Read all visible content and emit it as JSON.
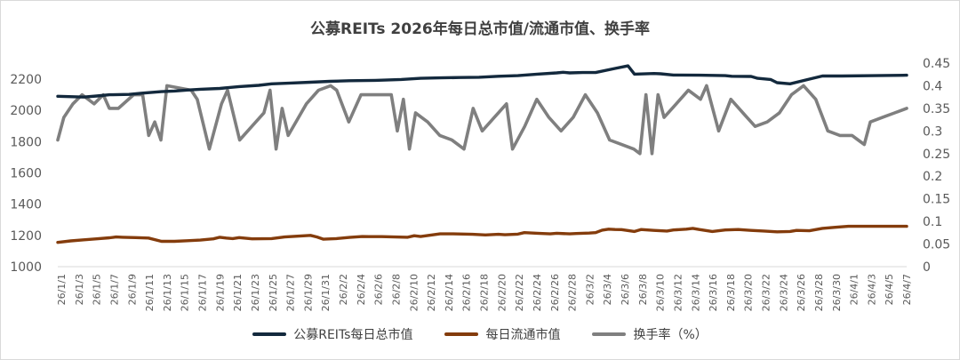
{
  "chart_data": {
    "type": "line",
    "title": "公募REITs 2026年每日总市值/流通市值、换手率",
    "left_axis": {
      "ylim": [
        1000,
        2200
      ],
      "ticks": [
        1000,
        1200,
        1400,
        1600,
        1800,
        2000,
        2200
      ]
    },
    "right_axis": {
      "ylim": [
        0,
        0.45
      ],
      "ticks": [
        "0",
        "0.05",
        "0.1",
        "0.15",
        "0.2",
        "0.25",
        "0.3",
        "0.35",
        "0.4",
        "0.45"
      ]
    },
    "x_tick_labels": [
      "26/1/1",
      "26/1/3",
      "26/1/5",
      "26/1/7",
      "26/1/9",
      "26/1/11",
      "26/1/13",
      "26/1/15",
      "26/1/17",
      "26/1/19",
      "26/1/21",
      "26/1/23",
      "26/1/25",
      "26/1/27",
      "26/1/29",
      "26/1/31",
      "26/2/2",
      "26/2/4",
      "26/2/6",
      "26/2/8",
      "26/2/10",
      "26/2/12",
      "26/2/14",
      "26/2/16",
      "26/2/18",
      "26/2/20",
      "26/2/22",
      "26/2/24",
      "26/2/26",
      "26/2/28",
      "26/3/2",
      "26/3/4",
      "26/3/6",
      "26/3/8",
      "26/3/10",
      "26/3/12",
      "26/3/14",
      "26/3/16",
      "26/3/18",
      "26/3/20",
      "26/3/22",
      "26/3/24",
      "26/3/26",
      "26/3/28",
      "26/3/30",
      "26/4/1",
      "26/4/3",
      "26/4/5",
      "26/4/7"
    ],
    "x_day_count": 97,
    "series": [
      {
        "name": "公募REITs每日总市值",
        "axis": "left",
        "color": "#13293d",
        "points": [
          [
            0,
            2090
          ],
          [
            8,
            2085
          ],
          [
            12,
            2092
          ],
          [
            16,
            2100
          ],
          [
            22,
            2102
          ],
          [
            26,
            2110
          ],
          [
            32,
            2120
          ],
          [
            36,
            2124
          ],
          [
            40,
            2130
          ],
          [
            44,
            2135
          ],
          [
            50,
            2140
          ],
          [
            56,
            2152
          ],
          [
            62,
            2160
          ],
          [
            66,
            2170
          ],
          [
            72,
            2175
          ],
          [
            78,
            2180
          ],
          [
            84,
            2186
          ],
          [
            90,
            2190
          ],
          [
            98,
            2192
          ],
          [
            106,
            2198
          ],
          [
            112,
            2205
          ],
          [
            118,
            2208
          ],
          [
            124,
            2210
          ],
          [
            130,
            2212
          ],
          [
            136,
            2218
          ],
          [
            142,
            2222
          ],
          [
            148,
            2232
          ],
          [
            154,
            2240
          ],
          [
            156,
            2244
          ],
          [
            158,
            2240
          ],
          [
            162,
            2242
          ],
          [
            166,
            2242
          ],
          [
            172,
            2268
          ],
          [
            176,
            2285
          ],
          [
            178,
            2232
          ],
          [
            184,
            2236
          ],
          [
            186,
            2234
          ],
          [
            190,
            2226
          ],
          [
            198,
            2225
          ],
          [
            206,
            2222
          ],
          [
            208,
            2218
          ],
          [
            214,
            2217
          ],
          [
            216,
            2205
          ],
          [
            220,
            2198
          ],
          [
            222,
            2177
          ],
          [
            226,
            2170
          ],
          [
            232,
            2200
          ],
          [
            236,
            2220
          ],
          [
            242,
            2220
          ],
          [
            252,
            2222
          ],
          [
            262,
            2225
          ]
        ]
      },
      {
        "name": "每日流通市值",
        "axis": "left",
        "color": "#843c0c",
        "points": [
          [
            0,
            1155
          ],
          [
            4,
            1165
          ],
          [
            8,
            1172
          ],
          [
            12,
            1178
          ],
          [
            16,
            1185
          ],
          [
            18,
            1190
          ],
          [
            20,
            1188
          ],
          [
            24,
            1186
          ],
          [
            28,
            1183
          ],
          [
            32,
            1162
          ],
          [
            36,
            1162
          ],
          [
            40,
            1166
          ],
          [
            44,
            1170
          ],
          [
            48,
            1178
          ],
          [
            50,
            1188
          ],
          [
            52,
            1183
          ],
          [
            54,
            1180
          ],
          [
            56,
            1186
          ],
          [
            60,
            1178
          ],
          [
            66,
            1180
          ],
          [
            70,
            1190
          ],
          [
            74,
            1195
          ],
          [
            78,
            1200
          ],
          [
            80,
            1190
          ],
          [
            82,
            1176
          ],
          [
            86,
            1180
          ],
          [
            90,
            1187
          ],
          [
            94,
            1193
          ],
          [
            96,
            1192
          ],
          [
            100,
            1192
          ],
          [
            104,
            1190
          ],
          [
            108,
            1188
          ],
          [
            110,
            1198
          ],
          [
            112,
            1193
          ],
          [
            118,
            1210
          ],
          [
            122,
            1210
          ],
          [
            128,
            1207
          ],
          [
            132,
            1203
          ],
          [
            136,
            1207
          ],
          [
            138,
            1204
          ],
          [
            142,
            1208
          ],
          [
            144,
            1218
          ],
          [
            148,
            1214
          ],
          [
            152,
            1210
          ],
          [
            154,
            1214
          ],
          [
            158,
            1210
          ],
          [
            160,
            1212
          ],
          [
            164,
            1215
          ],
          [
            166,
            1218
          ],
          [
            168,
            1234
          ],
          [
            170,
            1240
          ],
          [
            172,
            1238
          ],
          [
            174,
            1237
          ],
          [
            178,
            1225
          ],
          [
            180,
            1238
          ],
          [
            184,
            1232
          ],
          [
            188,
            1228
          ],
          [
            190,
            1235
          ],
          [
            194,
            1240
          ],
          [
            196,
            1245
          ],
          [
            198,
            1238
          ],
          [
            202,
            1225
          ],
          [
            206,
            1235
          ],
          [
            210,
            1238
          ],
          [
            214,
            1232
          ],
          [
            218,
            1228
          ],
          [
            222,
            1223
          ],
          [
            226,
            1225
          ],
          [
            228,
            1232
          ],
          [
            232,
            1230
          ],
          [
            236,
            1245
          ],
          [
            240,
            1252
          ],
          [
            244,
            1258
          ],
          [
            248,
            1258
          ],
          [
            252,
            1258
          ],
          [
            256,
            1258
          ],
          [
            260,
            1258
          ],
          [
            262,
            1258
          ]
        ]
      },
      {
        "name": "换手率（%）",
        "axis": "right",
        "color": "#7f7f7f",
        "points": [
          [
            0,
            0.28
          ],
          [
            2,
            0.33
          ],
          [
            5,
            0.36
          ],
          [
            8,
            0.38
          ],
          [
            10,
            0.37
          ],
          [
            12,
            0.36
          ],
          [
            15,
            0.38
          ],
          [
            17,
            0.35
          ],
          [
            20,
            0.35
          ],
          [
            25,
            0.38
          ],
          [
            28,
            0.38
          ],
          [
            30,
            0.29
          ],
          [
            32,
            0.32
          ],
          [
            34,
            0.28
          ],
          [
            36,
            0.4
          ],
          [
            44,
            0.39
          ],
          [
            46,
            0.37
          ],
          [
            50,
            0.26
          ],
          [
            54,
            0.36
          ],
          [
            56,
            0.39
          ],
          [
            60,
            0.28
          ],
          [
            64,
            0.31
          ],
          [
            68,
            0.34
          ],
          [
            70,
            0.39
          ],
          [
            72,
            0.26
          ],
          [
            74,
            0.35
          ],
          [
            76,
            0.29
          ],
          [
            82,
            0.36
          ],
          [
            86,
            0.39
          ],
          [
            90,
            0.4
          ],
          [
            92,
            0.39
          ],
          [
            96,
            0.32
          ],
          [
            100,
            0.38
          ],
          [
            106,
            0.38
          ],
          [
            110,
            0.38
          ],
          [
            112,
            0.3
          ],
          [
            114,
            0.37
          ],
          [
            116,
            0.26
          ],
          [
            118,
            0.34
          ],
          [
            122,
            0.32
          ],
          [
            126,
            0.29
          ],
          [
            130,
            0.28
          ],
          [
            134,
            0.26
          ],
          [
            137,
            0.35
          ],
          [
            140,
            0.3
          ],
          [
            144,
            0.33
          ],
          [
            148,
            0.36
          ],
          [
            150,
            0.26
          ],
          [
            154,
            0.31
          ],
          [
            158,
            0.37
          ],
          [
            162,
            0.33
          ],
          [
            166,
            0.3
          ],
          [
            170,
            0.33
          ],
          [
            174,
            0.38
          ],
          [
            178,
            0.34
          ],
          [
            182,
            0.28
          ],
          [
            186,
            0.27
          ],
          [
            190,
            0.26
          ],
          [
            192,
            0.25
          ],
          [
            194,
            0.38
          ],
          [
            196,
            0.25
          ],
          [
            198,
            0.38
          ],
          [
            200,
            0.33
          ],
          [
            204,
            0.36
          ],
          [
            208,
            0.39
          ],
          [
            212,
            0.37
          ],
          [
            214,
            0.4
          ],
          [
            218,
            0.3
          ],
          [
            222,
            0.37
          ],
          [
            226,
            0.34
          ],
          [
            230,
            0.31
          ],
          [
            234,
            0.32
          ],
          [
            238,
            0.34
          ],
          [
            242,
            0.38
          ],
          [
            246,
            0.4
          ],
          [
            250,
            0.37
          ],
          [
            254,
            0.3
          ],
          [
            258,
            0.29
          ],
          [
            262,
            0.29
          ],
          [
            264,
            0.28
          ],
          [
            266,
            0.27
          ],
          [
            268,
            0.32
          ],
          [
            272,
            0.33
          ],
          [
            276,
            0.34
          ],
          [
            280,
            0.35
          ]
        ]
      }
    ]
  },
  "legend": [
    {
      "label": "公募REITs每日总市值",
      "color": "#13293d"
    },
    {
      "label": "每日流通市值",
      "color": "#843c0c"
    },
    {
      "label": "换手率（%）",
      "color": "#7f7f7f"
    }
  ]
}
